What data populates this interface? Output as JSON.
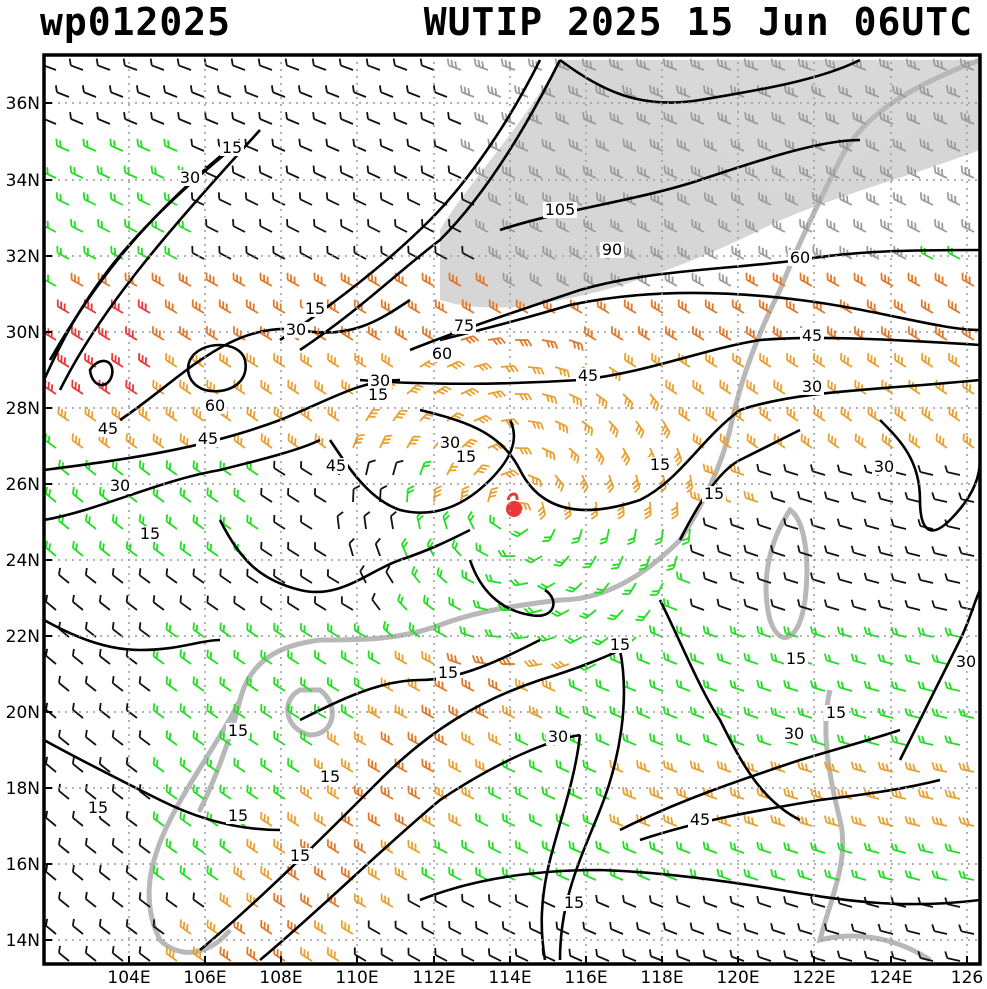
{
  "header": {
    "left": "wp012025",
    "right": "WUTIP 2025 15 Jun 06UTC"
  },
  "map": {
    "lon_ticks": [
      "104E",
      "106E",
      "108E",
      "110E",
      "112E",
      "114E",
      "116E",
      "118E",
      "120E",
      "122E",
      "124E",
      "126"
    ],
    "lat_ticks": [
      "36N",
      "34N",
      "32N",
      "30N",
      "28N",
      "26N",
      "24N",
      "22N",
      "20N",
      "18N",
      "16N",
      "14N"
    ],
    "contour_labels": [
      "15",
      "30",
      "15",
      "30",
      "60",
      "45",
      "45",
      "30",
      "15",
      "30",
      "15",
      "105",
      "90",
      "60",
      "75",
      "60",
      "45",
      "45",
      "30",
      "30",
      "15",
      "15",
      "15",
      "30",
      "15",
      "15",
      "15",
      "15",
      "15",
      "15",
      "30",
      "45",
      "30",
      "15",
      "15",
      "15",
      "30",
      "45",
      "15"
    ],
    "storm_marker": "storm-center"
  },
  "colors": {
    "frame": "#000000",
    "grid": "#9a9a9a",
    "coast": "#b8b8b8",
    "shade_gray": "#c8c8c8",
    "barb_black": "#111111",
    "barb_green": "#22dd22",
    "barb_orange": "#e8a030",
    "barb_darkorange": "#e07828",
    "barb_red": "#e83838",
    "storm": "#e83838"
  }
}
